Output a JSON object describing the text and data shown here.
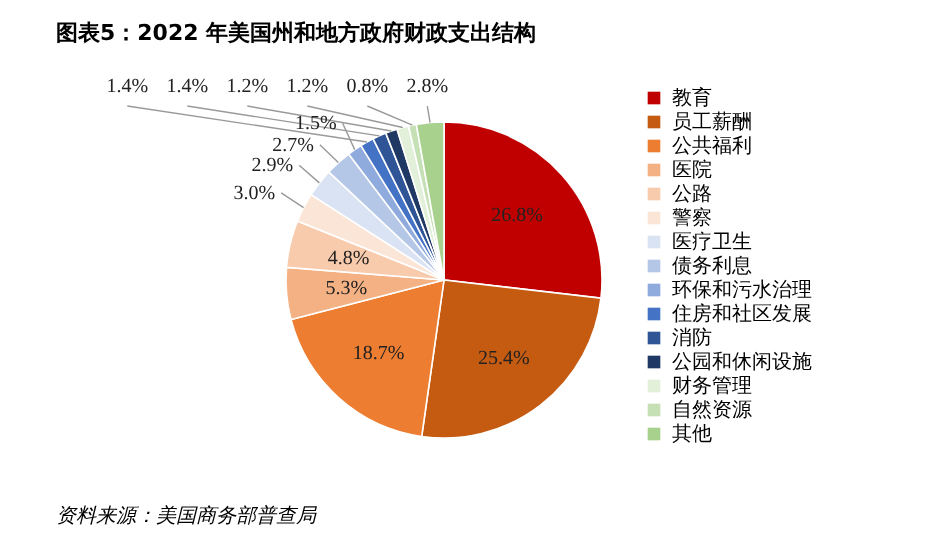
{
  "chart_data": {
    "type": "pie",
    "title": "图表5：2022 年美国州和地方政府财政支出结构",
    "categories": [
      "教育",
      "员工薪酬",
      "公共福利",
      "医院",
      "公路",
      "警察",
      "医疗卫生",
      "债务利息",
      "环保和污水治理",
      "住房和社区发展",
      "消防",
      "公园和休闲设施",
      "财务管理",
      "自然资源",
      "其他"
    ],
    "values": [
      26.8,
      25.4,
      18.7,
      5.3,
      4.8,
      3.0,
      2.9,
      2.7,
      1.5,
      1.4,
      1.4,
      1.2,
      1.2,
      0.8,
      2.8
    ],
    "value_labels": [
      "26.8%",
      "25.4%",
      "18.7%",
      "5.3%",
      "4.8%",
      "3.0%",
      "2.9%",
      "2.7%",
      "1.5%",
      "1.4%",
      "1.4%",
      "1.2%",
      "1.2%",
      "0.8%",
      "2.8%"
    ],
    "colors": [
      "#c00000",
      "#c55a11",
      "#ed7d31",
      "#f4b183",
      "#f8cbad",
      "#fbe5d6",
      "#dae3f3",
      "#b4c7e7",
      "#8faadc",
      "#4472c4",
      "#2f5597",
      "#203864",
      "#e2f0d9",
      "#c5e0b4",
      "#a9d18e"
    ],
    "legend": "right",
    "annotations": [
      "资料来源：美国商务部普查局"
    ]
  }
}
